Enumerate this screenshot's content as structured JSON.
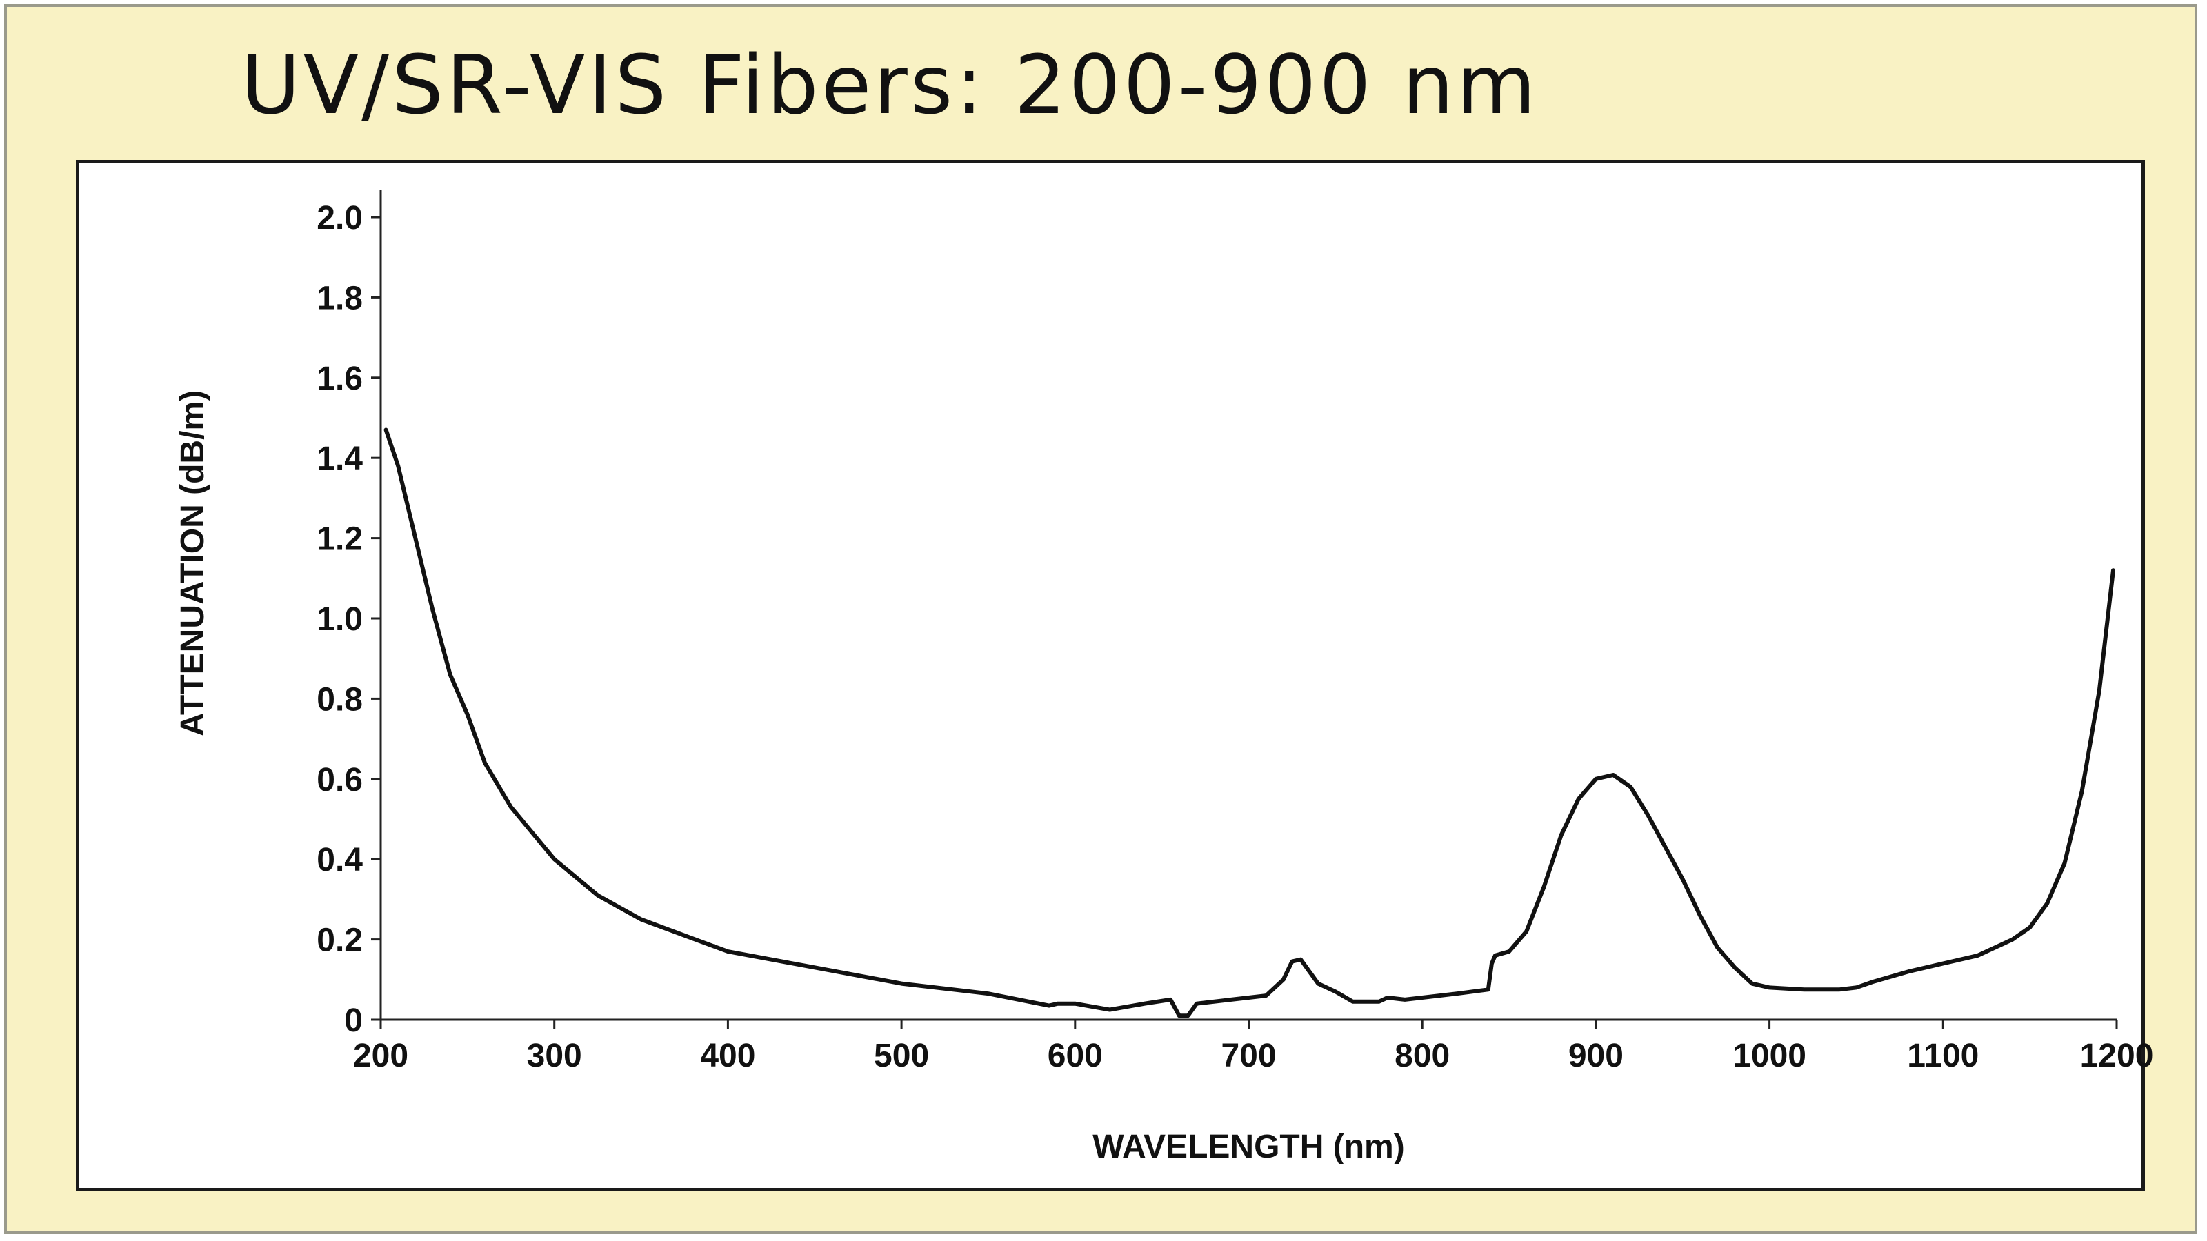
{
  "title": "UV/SR-VIS Fibers:  200-900 nm",
  "chart_data": {
    "type": "line",
    "xlabel": "WAVELENGTH (nm)",
    "ylabel": "ATTENUATION (dB/m)",
    "xlim": [
      200,
      1200
    ],
    "ylim": [
      0,
      2.0
    ],
    "xticks": [
      "200",
      "300",
      "400",
      "500",
      "600",
      "700",
      "800",
      "900",
      "1000",
      "1100",
      "1200"
    ],
    "yticks": [
      "0",
      "0.2",
      "0.4",
      "0.6",
      "0.8",
      "1.0",
      "1.2",
      "1.4",
      "1.6",
      "1.8",
      "2.0"
    ],
    "grid": false,
    "series": [
      {
        "x": [
          203,
          210,
          220,
          230,
          240,
          250,
          260,
          275,
          300,
          325,
          350,
          400,
          450,
          500,
          550,
          585,
          590,
          600,
          620,
          640,
          655,
          660,
          665,
          670,
          690,
          710,
          720,
          725,
          730,
          735,
          740,
          750,
          760,
          775,
          780,
          790,
          800,
          820,
          838,
          840,
          842,
          850,
          860,
          870,
          880,
          890,
          900,
          910,
          920,
          930,
          940,
          950,
          960,
          970,
          980,
          990,
          1000,
          1020,
          1040,
          1050,
          1060,
          1080,
          1100,
          1120,
          1140,
          1150,
          1160,
          1170,
          1180,
          1190,
          1198
        ],
        "y": [
          1.47,
          1.38,
          1.2,
          1.02,
          0.86,
          0.76,
          0.64,
          0.53,
          0.4,
          0.31,
          0.25,
          0.17,
          0.13,
          0.09,
          0.065,
          0.035,
          0.04,
          0.04,
          0.025,
          0.04,
          0.05,
          0.01,
          0.01,
          0.04,
          0.05,
          0.06,
          0.1,
          0.145,
          0.15,
          0.12,
          0.09,
          0.07,
          0.045,
          0.045,
          0.055,
          0.05,
          0.055,
          0.065,
          0.075,
          0.14,
          0.16,
          0.17,
          0.22,
          0.33,
          0.46,
          0.55,
          0.6,
          0.61,
          0.58,
          0.51,
          0.43,
          0.35,
          0.26,
          0.18,
          0.13,
          0.09,
          0.08,
          0.075,
          0.075,
          0.08,
          0.095,
          0.12,
          0.14,
          0.16,
          0.2,
          0.23,
          0.29,
          0.39,
          0.57,
          0.82,
          1.12
        ]
      }
    ]
  }
}
